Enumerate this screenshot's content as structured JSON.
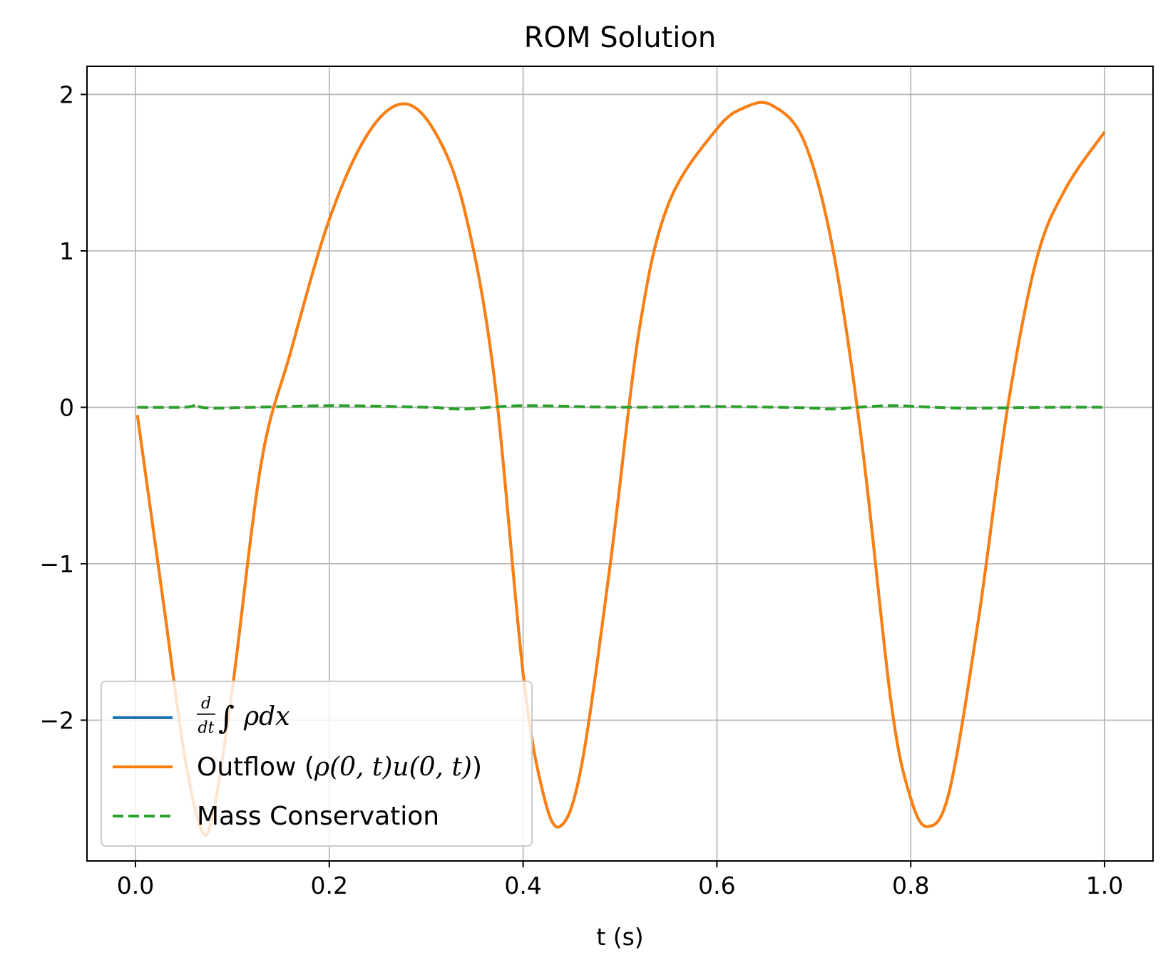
{
  "chart_data": {
    "type": "line",
    "title": "ROM Solution",
    "xlabel": "t (s)",
    "ylabel": "",
    "xlim": [
      -0.05,
      1.05
    ],
    "ylim": [
      -2.9,
      2.18
    ],
    "xticks": [
      0.0,
      0.2,
      0.4,
      0.6,
      0.8,
      1.0
    ],
    "xtick_labels": [
      "0.0",
      "0.2",
      "0.4",
      "0.6",
      "0.8",
      "1.0"
    ],
    "yticks": [
      -2,
      -1,
      0,
      1,
      2
    ],
    "ytick_labels": [
      "−2",
      "−1",
      "0",
      "1",
      "2"
    ],
    "grid": true,
    "legend_position": "lower-left",
    "series": [
      {
        "name": "d/dt ∫ ρdx",
        "style": "solid",
        "color": "#1f77b4",
        "x": [
          0.002,
          0.03,
          0.05,
          0.068,
          0.08,
          0.1,
          0.13,
          0.16,
          0.2,
          0.24,
          0.277,
          0.31,
          0.34,
          0.37,
          0.4,
          0.42,
          0.438,
          0.46,
          0.49,
          0.52,
          0.55,
          0.6,
          0.63,
          0.657,
          0.69,
          0.72,
          0.75,
          0.78,
          0.8,
          0.818,
          0.84,
          0.87,
          0.9,
          0.93,
          0.96,
          1.0
        ],
        "y": [
          -0.05,
          -1.3,
          -2.2,
          -2.7,
          -2.6,
          -1.8,
          -0.35,
          0.35,
          1.2,
          1.75,
          1.94,
          1.75,
          1.25,
          0.2,
          -1.7,
          -2.45,
          -2.68,
          -2.3,
          -1.0,
          0.5,
          1.3,
          1.78,
          1.92,
          1.93,
          1.7,
          1.0,
          -0.25,
          -1.9,
          -2.5,
          -2.68,
          -2.45,
          -1.35,
          0.0,
          0.95,
          1.4,
          1.76
        ]
      },
      {
        "name": "Outflow (ρ(0, t)u(0, t))",
        "style": "solid",
        "color": "#ff7f0e",
        "x": [
          0.002,
          0.03,
          0.05,
          0.068,
          0.08,
          0.1,
          0.13,
          0.16,
          0.2,
          0.24,
          0.277,
          0.31,
          0.34,
          0.37,
          0.4,
          0.42,
          0.438,
          0.46,
          0.49,
          0.52,
          0.55,
          0.6,
          0.63,
          0.657,
          0.69,
          0.72,
          0.75,
          0.78,
          0.8,
          0.818,
          0.84,
          0.87,
          0.9,
          0.93,
          0.96,
          1.0
        ],
        "y": [
          -0.05,
          -1.3,
          -2.2,
          -2.7,
          -2.6,
          -1.8,
          -0.35,
          0.35,
          1.2,
          1.75,
          1.94,
          1.75,
          1.25,
          0.2,
          -1.7,
          -2.45,
          -2.68,
          -2.3,
          -1.0,
          0.5,
          1.3,
          1.78,
          1.92,
          1.93,
          1.7,
          1.0,
          -0.25,
          -1.9,
          -2.5,
          -2.68,
          -2.45,
          -1.35,
          0.0,
          0.95,
          1.4,
          1.76
        ]
      },
      {
        "name": "Mass Conservation",
        "style": "dashed",
        "color": "#2ca02c",
        "x": [
          0.002,
          0.05,
          0.065,
          0.08,
          0.2,
          0.3,
          0.34,
          0.4,
          0.5,
          0.6,
          0.7,
          0.72,
          0.78,
          0.85,
          0.95,
          1.0
        ],
        "y": [
          0.0,
          0.0,
          0.015,
          -0.005,
          0.01,
          0.0,
          -0.01,
          0.01,
          0.0,
          0.005,
          -0.005,
          -0.01,
          0.01,
          -0.005,
          0.0,
          0.0
        ]
      }
    ]
  },
  "legend": {
    "items": [
      {
        "parts": {
          "frac_num": "d",
          "frac_den": "dt",
          "integral": "∫",
          "expr": "ρdx"
        }
      },
      {
        "text": "Outflow (",
        "math": "ρ(0, t)u(0, t)",
        "close": ")"
      },
      {
        "text": "Mass Conservation"
      }
    ]
  }
}
